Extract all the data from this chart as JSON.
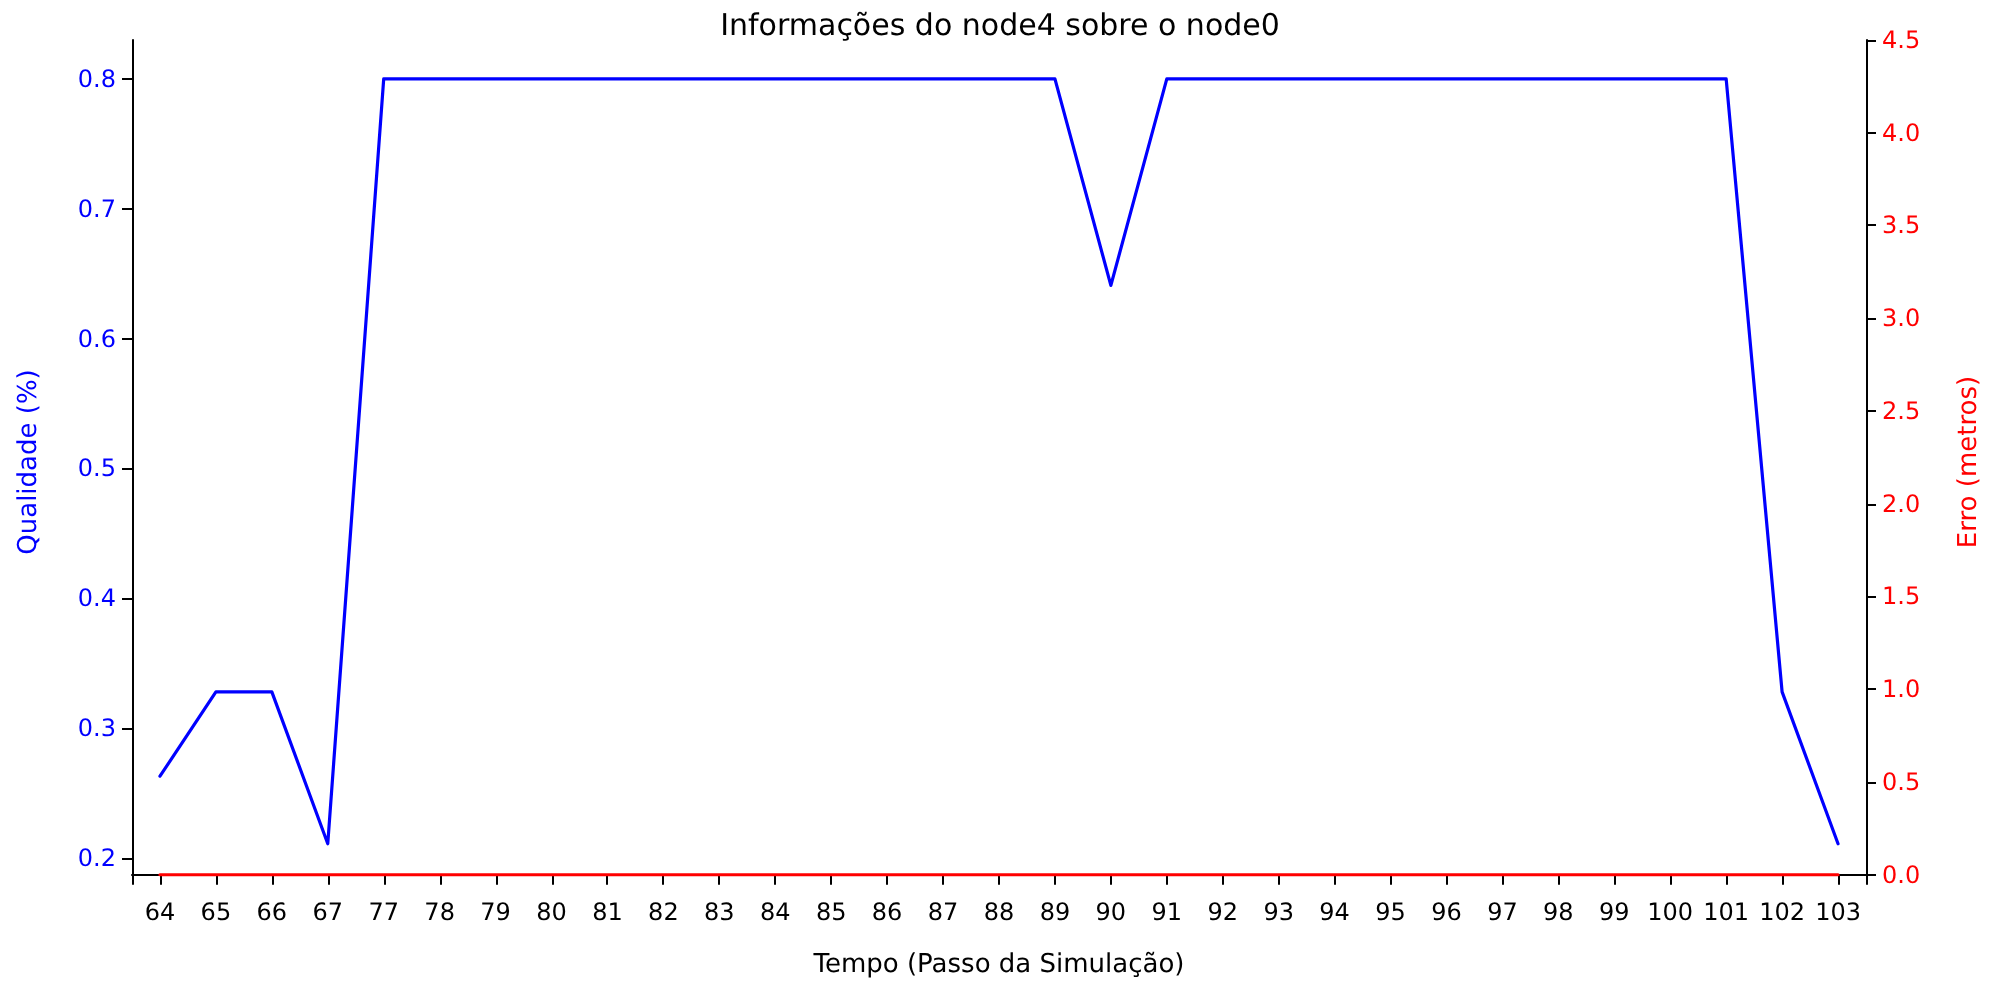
{
  "chart_data": {
    "type": "line",
    "title": "Informações do node4 sobre o node0",
    "xlabel": "Tempo (Passo da Simulação)",
    "ylabel": "Qualidade (%)",
    "y2label": "Erro (metros)",
    "categories": [
      "64",
      "65",
      "66",
      "67",
      "77",
      "78",
      "79",
      "80",
      "81",
      "82",
      "83",
      "84",
      "85",
      "86",
      "87",
      "88",
      "89",
      "90",
      "91",
      "92",
      "93",
      "94",
      "95",
      "96",
      "97",
      "98",
      "99",
      "100",
      "101",
      "102",
      "103"
    ],
    "series": [
      {
        "color": "#0000ff",
        "values": [
          0.263,
          0.328,
          0.328,
          0.211,
          0.8,
          0.8,
          0.8,
          0.8,
          0.8,
          0.8,
          0.8,
          0.8,
          0.8,
          0.8,
          0.8,
          0.8,
          0.8,
          0.641,
          0.8,
          0.8,
          0.8,
          0.8,
          0.8,
          0.8,
          0.8,
          0.8,
          0.8,
          0.8,
          0.8,
          0.328,
          0.211
        ]
      },
      {
        "color": "#ff0000",
        "axis": "y2",
        "values": [
          0,
          0,
          0,
          0,
          0,
          0,
          0,
          0,
          0,
          0,
          0,
          0,
          0,
          0,
          0,
          0,
          0,
          0,
          0,
          0,
          0,
          0,
          0,
          0,
          0,
          0,
          0,
          0,
          0,
          0,
          0
        ]
      }
    ],
    "ylim": [
      0.18,
      0.83
    ],
    "yticks": [
      0.2,
      0.3,
      0.4,
      0.5,
      0.6,
      0.7,
      0.8
    ],
    "y2lim": [
      -0.05,
      4.5
    ],
    "y2ticks": [
      {
        "value": 0,
        "label": "0.0"
      },
      {
        "value": 0.5,
        "label": "0.5"
      },
      {
        "value": 1,
        "label": "1.0"
      },
      {
        "value": 1.5,
        "label": "1.5"
      },
      {
        "value": 2,
        "label": "2.0"
      },
      {
        "value": 2.5,
        "label": "2.5"
      },
      {
        "value": 3,
        "label": "3.0"
      },
      {
        "value": 3.5,
        "label": "3.5"
      },
      {
        "value": 4,
        "label": "4.0"
      },
      {
        "value": 4.5,
        "label": "4.5"
      }
    ],
    "grid": false,
    "marker": "none",
    "line_style": "solid"
  }
}
